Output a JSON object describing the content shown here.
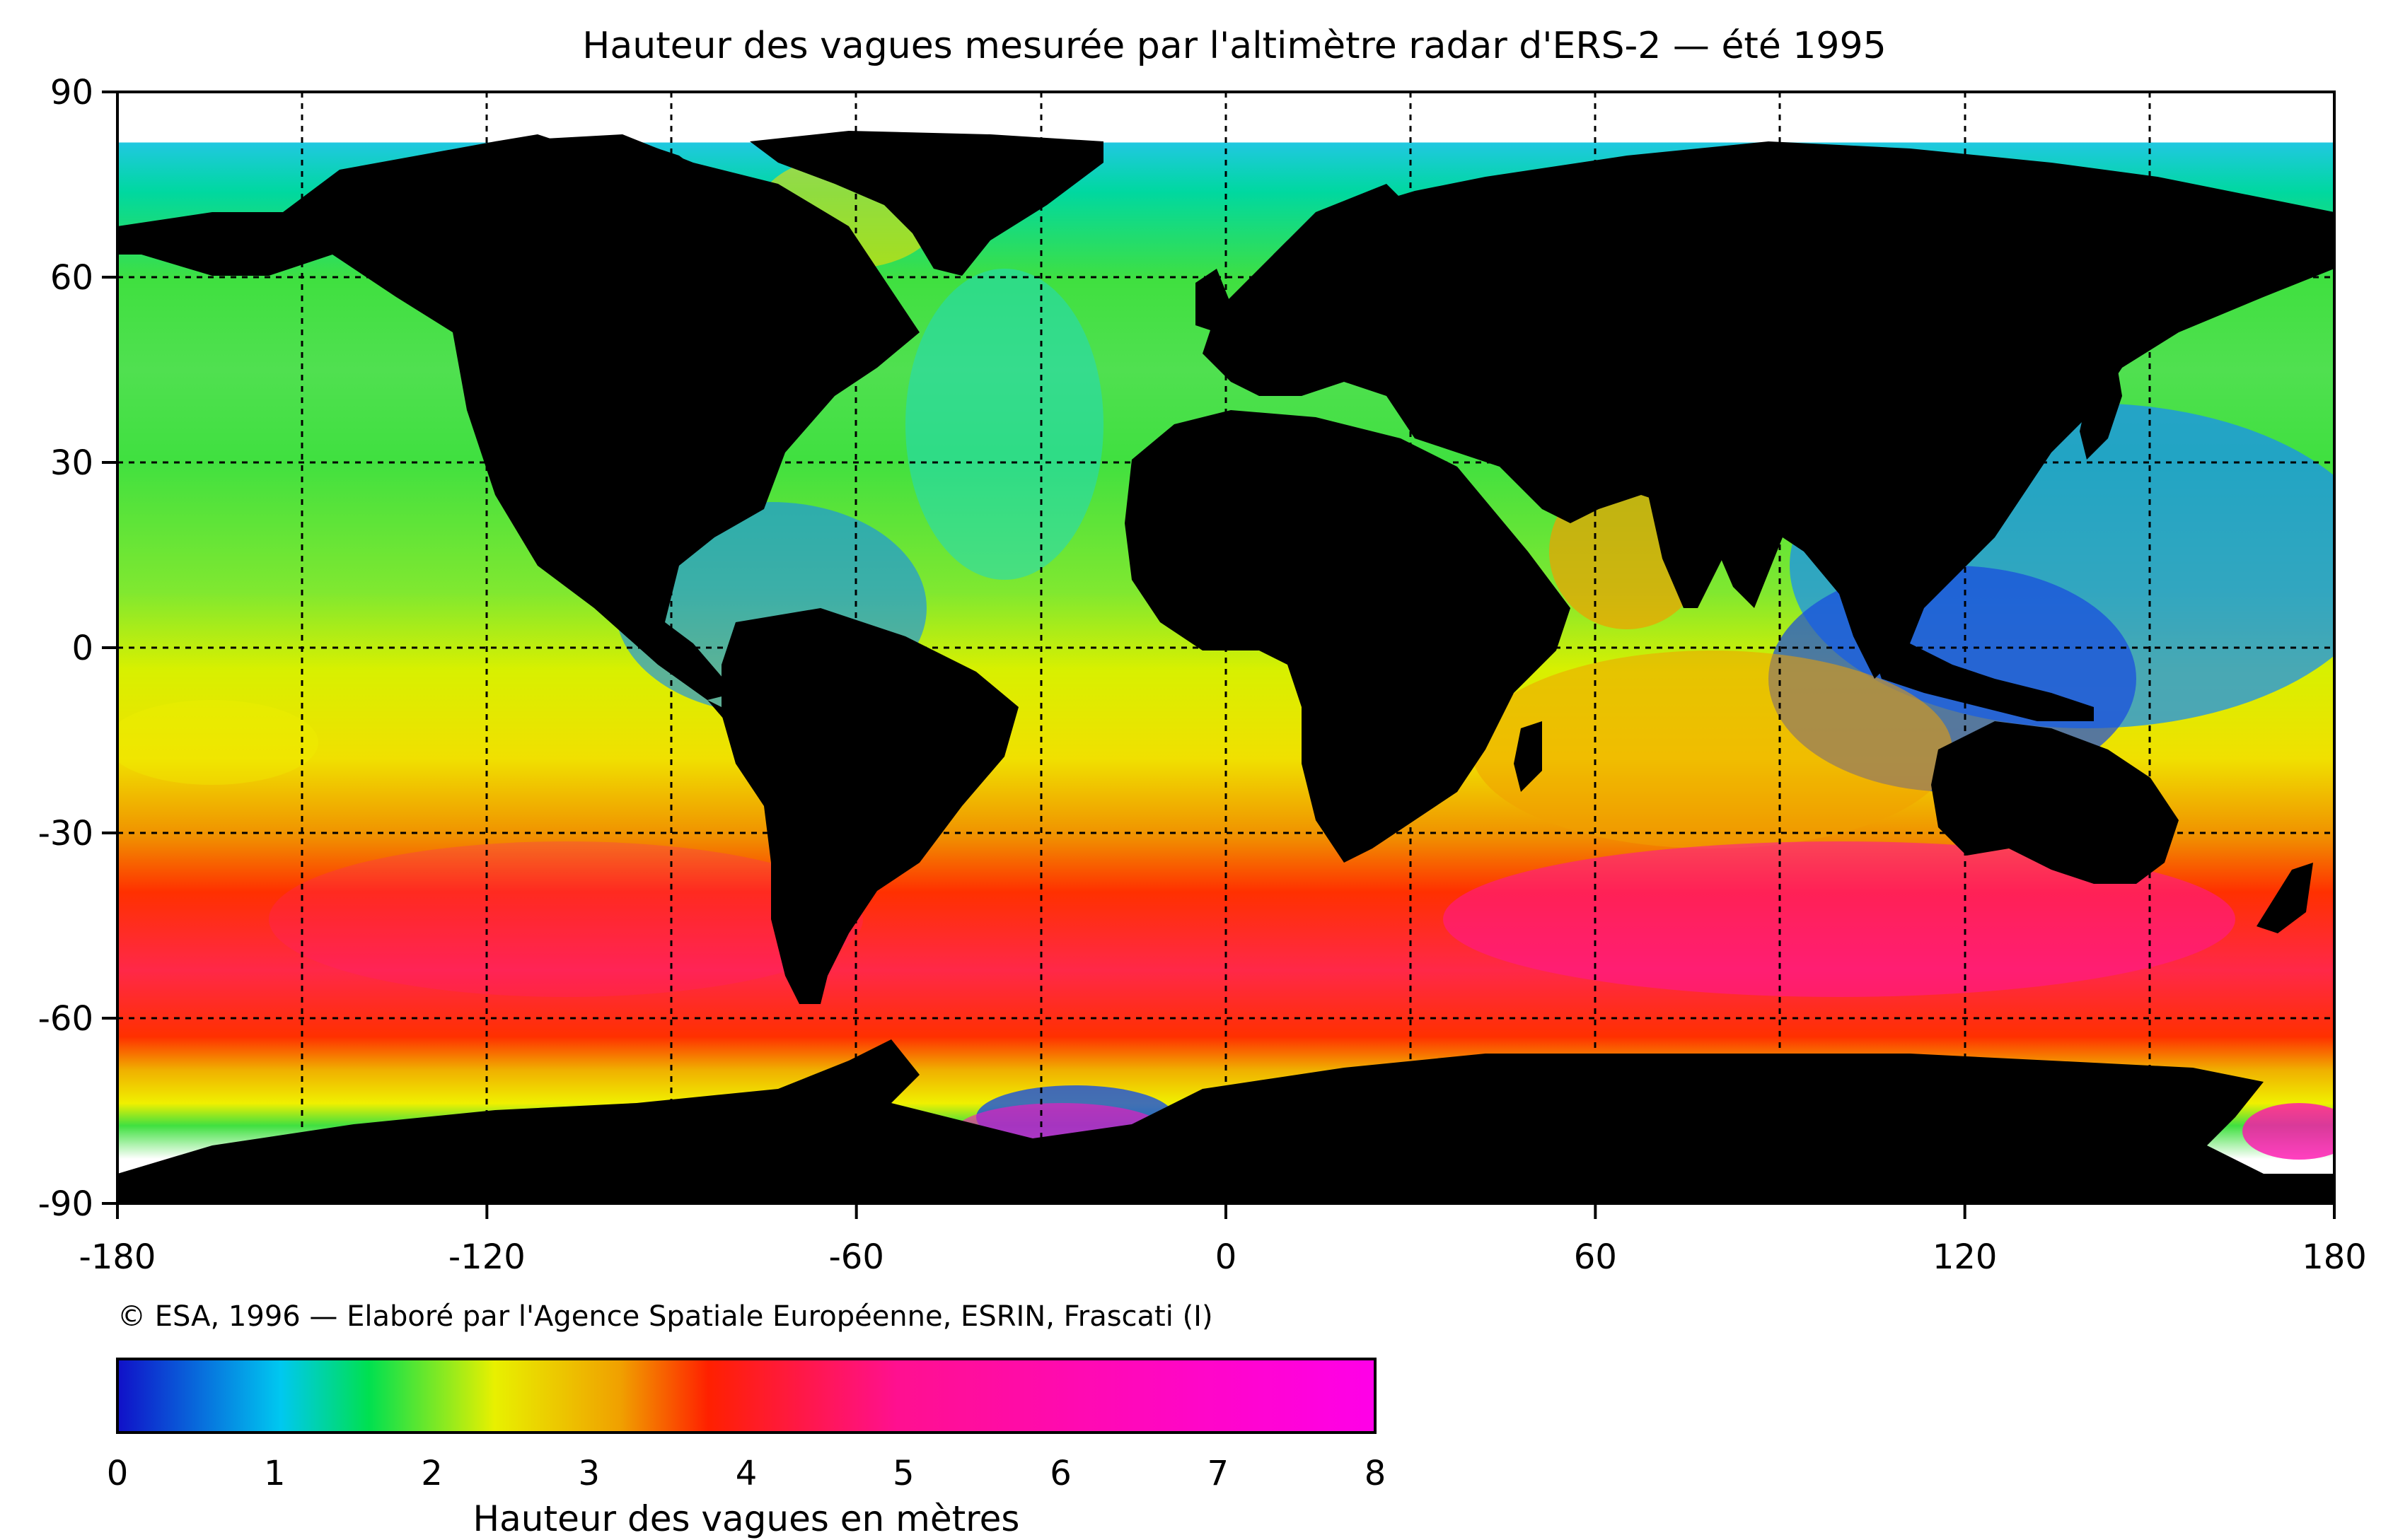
{
  "chart_data": {
    "type": "heatmap",
    "title": "Hauteur des vagues mesurée par l'altimètre radar d'ERS-2 — été 1995",
    "credit": "© ESA, 1996 — Elaboré par l'Agence Spatiale Européenne, ESRIN, Frascati (I)",
    "x_ticks": [
      "-180",
      "-120",
      "-60",
      "0",
      "60",
      "120",
      "180"
    ],
    "y_ticks": [
      "90",
      "60",
      "30",
      "0",
      "-30",
      "-60",
      "-90"
    ],
    "x_range": [
      -180,
      180
    ],
    "y_range": [
      -90,
      90
    ],
    "grid": true,
    "colorbar": {
      "label": "Hauteur des vagues en mètres",
      "ticks": [
        "0",
        "1",
        "2",
        "3",
        "4",
        "5",
        "6",
        "7",
        "8"
      ],
      "range": [
        0,
        8
      ],
      "colors": [
        "#1010c8",
        "#00c8f0",
        "#00e050",
        "#f0f000",
        "#f0b000",
        "#ff2000",
        "#ff10a0",
        "#ff00e8"
      ]
    },
    "colors": {
      "land": "#000000",
      "no_data": "#ffffff"
    }
  }
}
